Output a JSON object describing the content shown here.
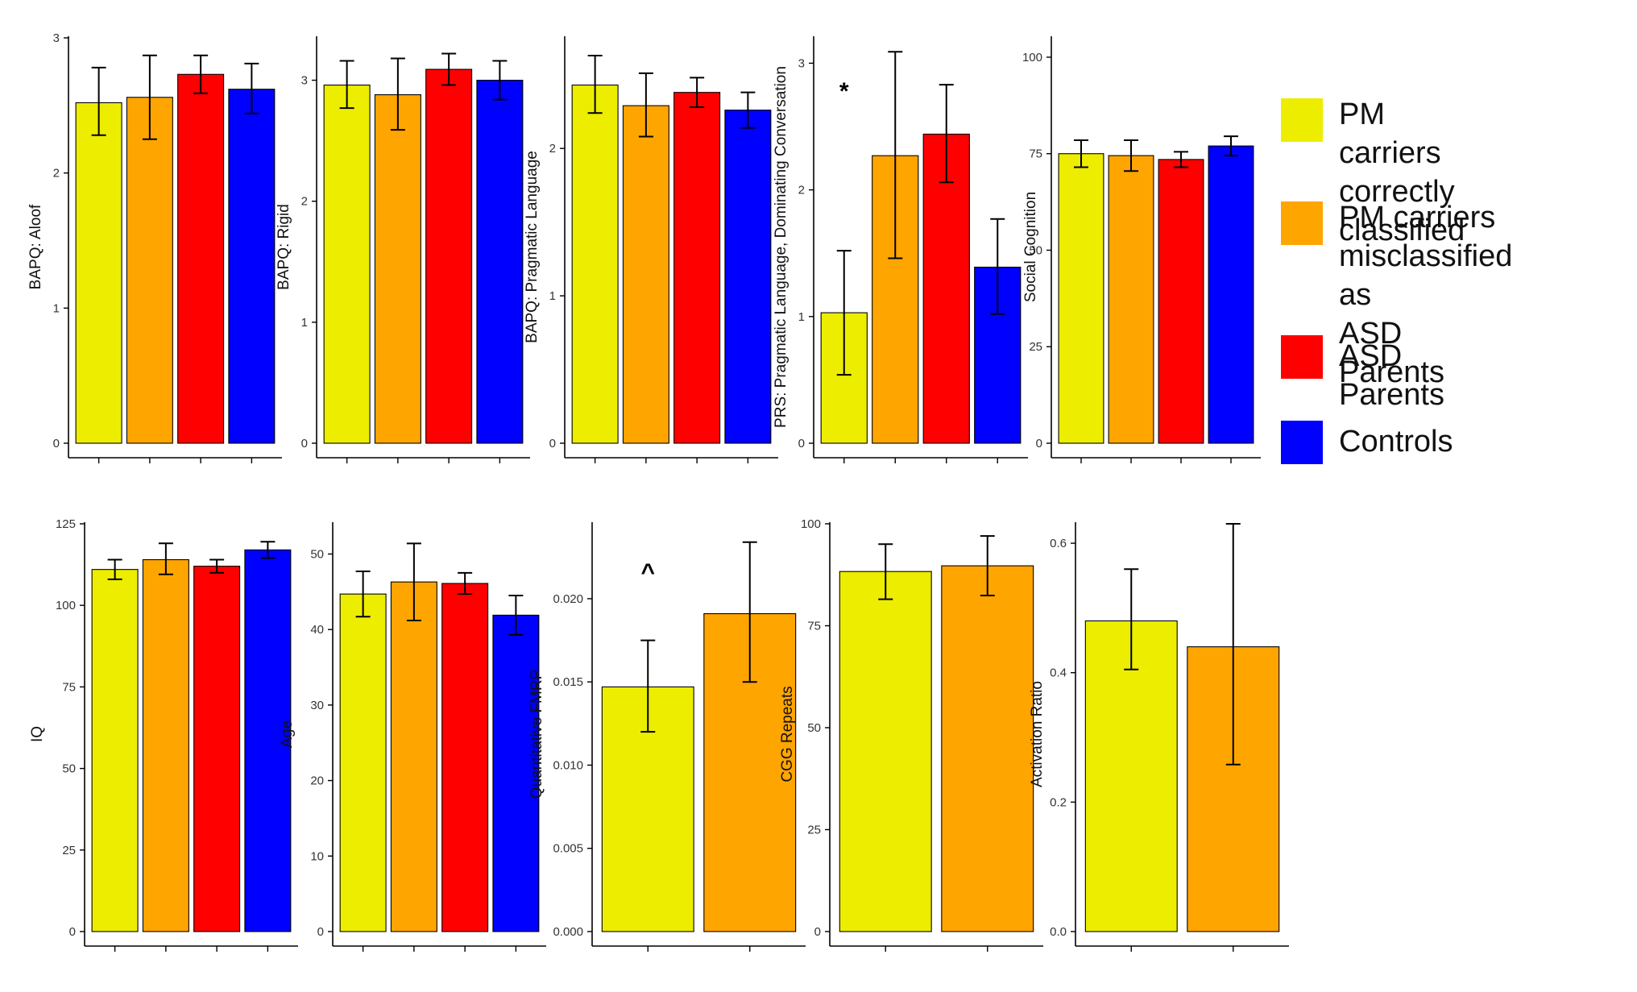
{
  "chart_data": [
    {
      "type": "bar",
      "row": 0,
      "ylabel": "BAPQ: Aloof",
      "ylim": [
        0,
        3
      ],
      "yticks": [
        0,
        1,
        2,
        3
      ],
      "ytick_labels": [
        "0",
        "1",
        "2",
        "3"
      ],
      "groups": [
        "PM carriers correctly classified",
        "PM carriers misclassified as ASD Parents",
        "ASD Parents",
        "Controls"
      ],
      "values": [
        2.52,
        2.56,
        2.73,
        2.62
      ],
      "errors": [
        [
          2.28,
          2.78
        ],
        [
          2.25,
          2.87
        ],
        [
          2.59,
          2.87
        ],
        [
          2.44,
          2.81
        ]
      ],
      "annotation": null
    },
    {
      "type": "bar",
      "row": 0,
      "ylabel": "BAPQ: Rigid",
      "ylim": [
        0,
        3.35
      ],
      "yticks": [
        0,
        1,
        2,
        3
      ],
      "ytick_labels": [
        "0",
        "1",
        "2",
        "3"
      ],
      "groups": [
        "PM carriers correctly classified",
        "PM carriers misclassified as ASD Parents",
        "ASD Parents",
        "Controls"
      ],
      "values": [
        2.96,
        2.88,
        3.09,
        3.0
      ],
      "errors": [
        [
          2.77,
          3.16
        ],
        [
          2.59,
          3.18
        ],
        [
          2.96,
          3.22
        ],
        [
          2.84,
          3.16
        ]
      ],
      "annotation": null
    },
    {
      "type": "bar",
      "row": 0,
      "ylabel": "BAPQ: Pragmatic Language",
      "ylim": [
        0,
        2.75
      ],
      "yticks": [
        0,
        1,
        2
      ],
      "ytick_labels": [
        "0",
        "1",
        "2"
      ],
      "groups": [
        "PM carriers correctly classified",
        "PM carriers misclassified as ASD Parents",
        "ASD Parents",
        "Controls"
      ],
      "values": [
        2.43,
        2.29,
        2.38,
        2.26
      ],
      "errors": [
        [
          2.24,
          2.63
        ],
        [
          2.08,
          2.51
        ],
        [
          2.28,
          2.48
        ],
        [
          2.14,
          2.38
        ]
      ],
      "annotation": null
    },
    {
      "type": "bar",
      "row": 0,
      "ylabel": "PRS: Pragmatic Language, Dominating Conversation",
      "ylim": [
        0,
        3.2
      ],
      "yticks": [
        0,
        1,
        2,
        3
      ],
      "ytick_labels": [
        "0",
        "1",
        "2",
        "3"
      ],
      "groups": [
        "PM carriers correctly classified",
        "PM carriers misclassified as ASD Parents",
        "ASD Parents",
        "Controls"
      ],
      "values": [
        1.03,
        2.27,
        2.44,
        1.39
      ],
      "errors": [
        [
          0.54,
          1.52
        ],
        [
          1.46,
          3.09
        ],
        [
          2.06,
          2.83
        ],
        [
          1.02,
          1.77
        ]
      ],
      "annotation": "*"
    },
    {
      "type": "bar",
      "row": 0,
      "ylabel": "Social Cognition",
      "ylim": [
        0,
        105
      ],
      "yticks": [
        0,
        25,
        50,
        75,
        100
      ],
      "ytick_labels": [
        "0",
        "25",
        "50",
        "75",
        "100"
      ],
      "groups": [
        "PM carriers correctly classified",
        "PM carriers misclassified as ASD Parents",
        "ASD Parents",
        "Controls"
      ],
      "values": [
        75,
        74.5,
        73.5,
        77
      ],
      "errors": [
        [
          71.5,
          78.5
        ],
        [
          70.5,
          78.5
        ],
        [
          71.5,
          75.5
        ],
        [
          74.5,
          79.5
        ]
      ],
      "annotation": null
    },
    {
      "type": "bar",
      "row": 1,
      "ylabel": "IQ",
      "ylim": [
        0,
        125
      ],
      "yticks": [
        0,
        25,
        50,
        75,
        100,
        125
      ],
      "ytick_labels": [
        "0",
        "25",
        "50",
        "75",
        "100",
        "125"
      ],
      "groups": [
        "PM carriers correctly classified",
        "PM carriers misclassified as ASD Parents",
        "ASD Parents",
        "Controls"
      ],
      "values": [
        111,
        114,
        112,
        117
      ],
      "errors": [
        [
          108,
          114
        ],
        [
          109.5,
          119
        ],
        [
          110,
          114
        ],
        [
          114.5,
          119.5
        ]
      ],
      "annotation": null
    },
    {
      "type": "bar",
      "row": 1,
      "ylabel": "Age",
      "ylim": [
        0,
        54
      ],
      "yticks": [
        0,
        10,
        20,
        30,
        40,
        50
      ],
      "ytick_labels": [
        "0",
        "10",
        "20",
        "30",
        "40",
        "50"
      ],
      "groups": [
        "PM carriers correctly classified",
        "PM carriers misclassified as ASD Parents",
        "ASD Parents",
        "Controls"
      ],
      "values": [
        44.7,
        46.3,
        46.1,
        41.9
      ],
      "errors": [
        [
          41.7,
          47.7
        ],
        [
          41.2,
          51.4
        ],
        [
          44.7,
          47.5
        ],
        [
          39.3,
          44.5
        ]
      ],
      "annotation": null
    },
    {
      "type": "bar",
      "row": 1,
      "ylabel": "Quantitative FMRP",
      "ylim": [
        0,
        0.0245
      ],
      "yticks": [
        0,
        0.005,
        0.01,
        0.015,
        0.02
      ],
      "ytick_labels": [
        "0.000",
        "0.005",
        "0.010",
        "0.015",
        "0.020"
      ],
      "groups": [
        "PM carriers correctly classified",
        "PM carriers misclassified as ASD Parents"
      ],
      "values": [
        0.0147,
        0.0191
      ],
      "errors": [
        [
          0.012,
          0.0175
        ],
        [
          0.015,
          0.0234
        ]
      ],
      "annotation": "^"
    },
    {
      "type": "bar",
      "row": 1,
      "ylabel": "CGG Repeats",
      "ylim": [
        0,
        100
      ],
      "yticks": [
        0,
        25,
        50,
        75,
        100
      ],
      "ytick_labels": [
        "0",
        "25",
        "50",
        "75",
        "100"
      ],
      "groups": [
        "PM carriers correctly classified",
        "PM carriers misclassified as ASD Parents"
      ],
      "values": [
        88.3,
        89.7
      ],
      "errors": [
        [
          81.5,
          95
        ],
        [
          82.4,
          97
        ]
      ],
      "annotation": null
    },
    {
      "type": "bar",
      "row": 1,
      "ylabel": "Activation Ratio",
      "ylim": [
        0,
        0.63
      ],
      "yticks": [
        0,
        0.2,
        0.4,
        0.6
      ],
      "ytick_labels": [
        "0.0",
        "0.2",
        "0.4",
        "0.6"
      ],
      "groups": [
        "PM carriers correctly classified",
        "PM carriers misclassified as ASD Parents"
      ],
      "values": [
        0.48,
        0.44
      ],
      "errors": [
        [
          0.405,
          0.56
        ],
        [
          0.258,
          0.63
        ]
      ],
      "annotation": null
    }
  ],
  "legend": [
    {
      "label": "PM carriers\ncorrectly classified",
      "color": "#EDED00"
    },
    {
      "label": "PM carriers\nmisclassified as\nASD Parents",
      "color": "#FFA500"
    },
    {
      "label": "ASD Parents",
      "color": "#FF0000"
    },
    {
      "label": "Controls",
      "color": "#0000FF"
    }
  ],
  "colors": [
    "#EDED00",
    "#FFA500",
    "#FF0000",
    "#0000FF"
  ]
}
